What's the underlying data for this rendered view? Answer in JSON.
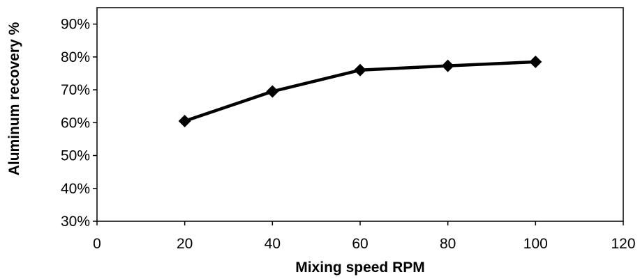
{
  "chart_data": {
    "type": "line",
    "title": "",
    "xlabel": "Mixing speed RPM",
    "ylabel": "Aluminum recovery %",
    "x": [
      20,
      40,
      60,
      80,
      100
    ],
    "series": [
      {
        "values": [
          60.5,
          69.5,
          76,
          77.3,
          78.5
        ]
      }
    ],
    "xlim": [
      0,
      120
    ],
    "ylim": [
      30,
      95
    ],
    "x_ticks": [
      0,
      20,
      40,
      60,
      80,
      100,
      120
    ],
    "x_tick_labels": [
      "0",
      "20",
      "40",
      "60",
      "80",
      "100",
      "120"
    ],
    "y_ticks": [
      30,
      40,
      50,
      60,
      70,
      80,
      90
    ],
    "y_tick_labels": [
      "30%",
      "40%",
      "50%",
      "60%",
      "70%",
      "80%",
      "90%"
    ],
    "grid": false,
    "legend": "none",
    "marker": "diamond",
    "line_color": "#000000"
  }
}
